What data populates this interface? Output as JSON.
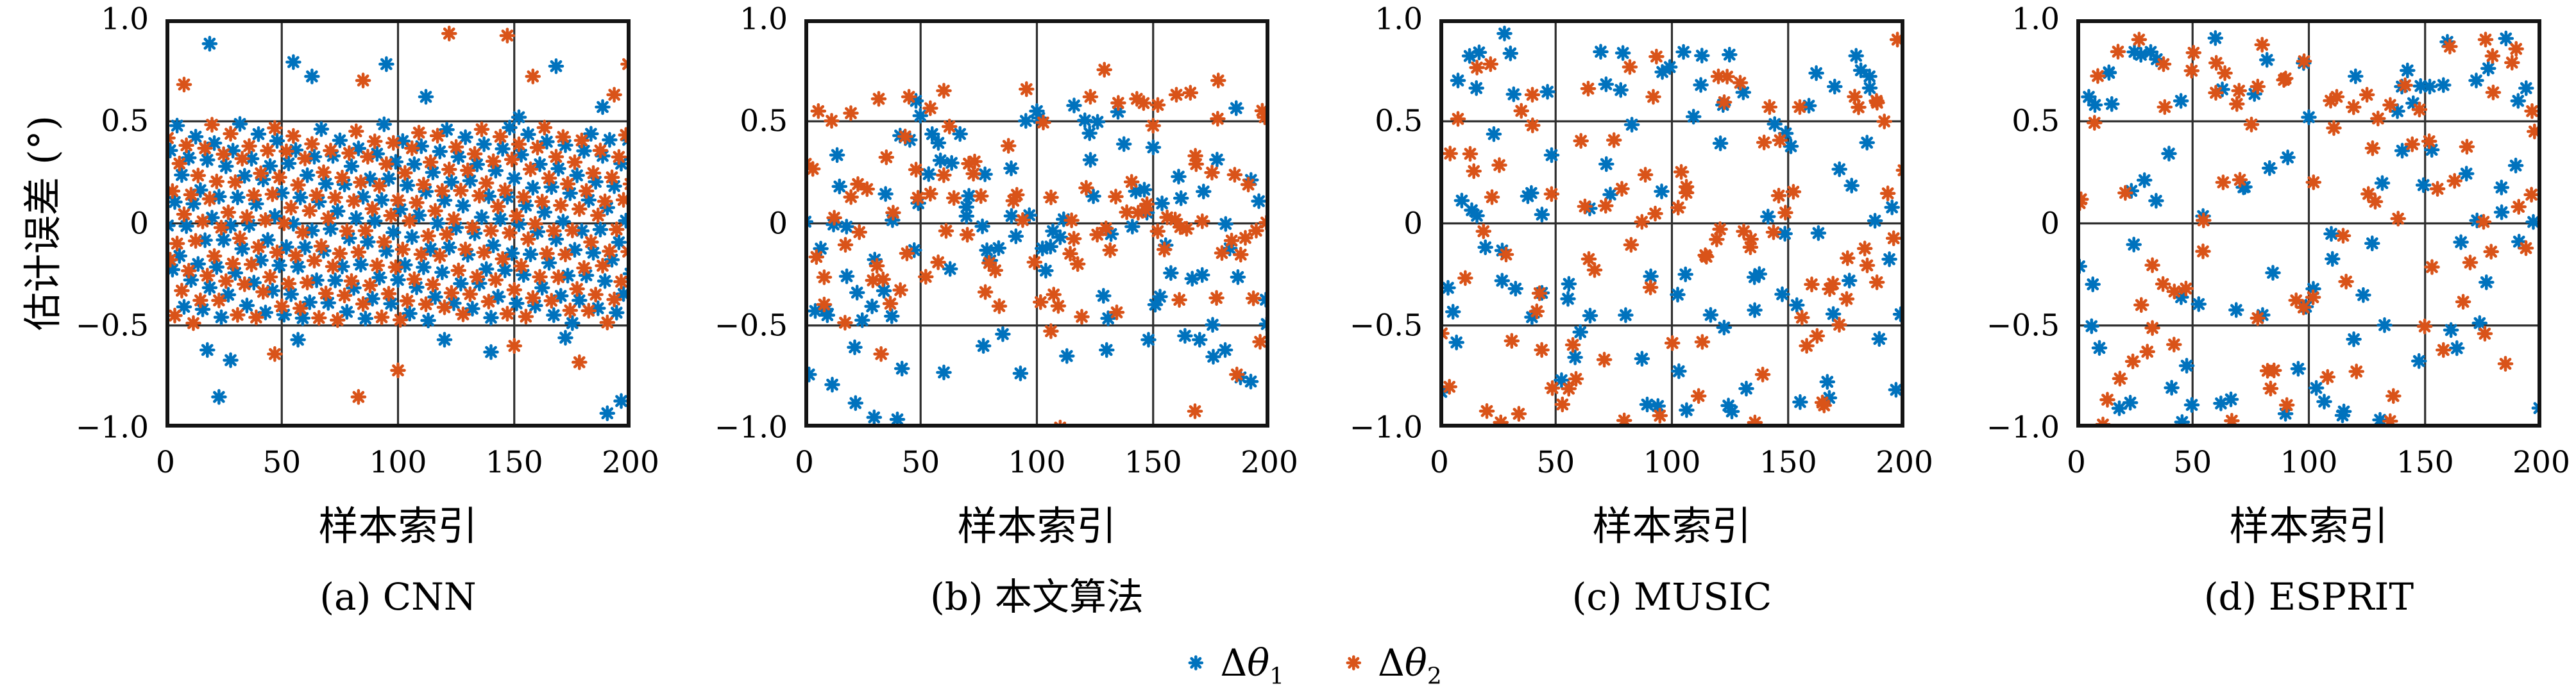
{
  "figure": {
    "background": "#ffffff",
    "axis_color": "#141414",
    "grid_color": "#2e2e2e",
    "ylabel": "估计误差 (°)",
    "legend": [
      {
        "marker": "asterisk-8-spoke",
        "delta": "Δ",
        "theta": "θ",
        "sub": "1",
        "color": "#0072bd"
      },
      {
        "marker": "asterisk-8-spoke",
        "delta": "Δ",
        "theta": "θ",
        "sub": "2",
        "color": "#d95319"
      }
    ]
  },
  "chart_data": [
    {
      "type": "scatter",
      "caption": "(a) CNN",
      "xlabel": "样本索引",
      "ylabel": "估计误差 (°)",
      "xlim": [
        0,
        200
      ],
      "ylim": [
        -1.0,
        1.0
      ],
      "xticks": [
        0,
        50,
        100,
        150,
        200
      ],
      "xtick_labels": [
        "0",
        "50",
        "100",
        "150",
        "200"
      ],
      "yticks": [
        1.0,
        0.5,
        0.0,
        -0.5,
        -1.0
      ],
      "ytick_labels": [
        "1.0",
        "0.5",
        "0",
        "−0.5",
        "−1.0"
      ],
      "grid": true,
      "marker": "asterisk-8-spoke",
      "series": [
        {
          "name": "Δθ1",
          "color": "#0072bd",
          "gen": {
            "kind": "lattice",
            "n": 200,
            "seed": 101,
            "step": 0.3707,
            "phase": 0.13,
            "spread": 0.97,
            "jitter": 0.05
          },
          "outliers": [
            [
              19,
              0.88
            ],
            [
              55,
              0.79
            ],
            [
              63,
              0.72
            ],
            [
              95,
              0.78
            ],
            [
              112,
              0.62
            ],
            [
              152,
              0.52
            ],
            [
              168,
              0.77
            ],
            [
              188,
              0.57
            ],
            [
              18,
              -0.62
            ],
            [
              23,
              -0.85
            ],
            [
              28,
              -0.67
            ],
            [
              57,
              -0.57
            ],
            [
              120,
              -0.57
            ],
            [
              140,
              -0.63
            ],
            [
              172,
              -0.56
            ],
            [
              190,
              -0.93
            ],
            [
              196,
              -0.87
            ]
          ]
        },
        {
          "name": "Δθ2",
          "color": "#d95319",
          "gen": {
            "kind": "lattice",
            "n": 200,
            "seed": 202,
            "step": 0.3707,
            "phase": 0.57,
            "spread": 0.97,
            "jitter": 0.05
          },
          "outliers": [
            [
              8,
              0.68
            ],
            [
              85,
              0.7
            ],
            [
              122,
              0.93
            ],
            [
              147,
              0.92
            ],
            [
              158,
              0.72
            ],
            [
              193,
              0.63
            ],
            [
              199,
              0.78
            ],
            [
              47,
              -0.64
            ],
            [
              83,
              -0.85
            ],
            [
              100,
              -0.72
            ],
            [
              150,
              -0.6
            ],
            [
              178,
              -0.68
            ]
          ]
        }
      ]
    },
    {
      "type": "scatter",
      "caption": "(b) 本文算法",
      "xlabel": "样本索引",
      "ylabel": "",
      "xlim": [
        0,
        200
      ],
      "ylim": [
        -1.0,
        1.0
      ],
      "xticks": [
        0,
        50,
        100,
        150,
        200
      ],
      "xtick_labels": [
        "0",
        "50",
        "100",
        "150",
        "200"
      ],
      "yticks": [
        1.0,
        0.5,
        0.0,
        -0.5,
        -1.0
      ],
      "ytick_labels": [
        "1.0",
        "0.5",
        "0",
        "−0.5",
        "−1.0"
      ],
      "grid": true,
      "marker": "asterisk-8-spoke",
      "series": [
        {
          "name": "Δθ1",
          "color": "#0072bd",
          "gen": {
            "kind": "triangular",
            "n": 95,
            "seed": 303,
            "scale": 0.8,
            "offset": -0.03,
            "clip": [
              -0.97,
              0.93
            ]
          },
          "outliers": [
            [
              2,
              -0.74
            ],
            [
              12,
              -0.79
            ],
            [
              22,
              -0.88
            ],
            [
              30,
              -0.95
            ],
            [
              40,
              -0.96
            ],
            [
              48,
              0.6
            ],
            [
              60,
              -0.73
            ],
            [
              77,
              -0.6
            ],
            [
              100,
              0.55
            ],
            [
              130,
              -0.62
            ],
            [
              148,
              -0.57
            ],
            [
              170,
              -0.57
            ],
            [
              181,
              -0.62
            ]
          ]
        },
        {
          "name": "Δθ2",
          "color": "#d95319",
          "gen": {
            "kind": "triangular",
            "n": 95,
            "seed": 404,
            "scale": 0.8,
            "offset": 0.0,
            "clip": [
              -0.97,
              0.93
            ]
          },
          "outliers": [
            [
              6,
              0.55
            ],
            [
              20,
              0.54
            ],
            [
              32,
              0.61
            ],
            [
              45,
              0.62
            ],
            [
              33,
              -0.64
            ],
            [
              60,
              0.65
            ],
            [
              123,
              0.62
            ],
            [
              135,
              0.59
            ],
            [
              143,
              0.61
            ],
            [
              152,
              0.58
            ],
            [
              160,
              0.63
            ],
            [
              166,
              0.64
            ],
            [
              178,
              0.7
            ],
            [
              110,
              -1.0
            ],
            [
              168,
              -0.92
            ],
            [
              186,
              -0.74
            ],
            [
              196,
              -0.58
            ],
            [
              198,
              0.52
            ]
          ]
        }
      ]
    },
    {
      "type": "scatter",
      "caption": "(c) MUSIC",
      "xlabel": "样本索引",
      "ylabel": "",
      "xlim": [
        0,
        200
      ],
      "ylim": [
        -1.0,
        1.0
      ],
      "xticks": [
        0,
        50,
        100,
        150,
        200
      ],
      "xtick_labels": [
        "0",
        "50",
        "100",
        "150",
        "200"
      ],
      "yticks": [
        1.0,
        0.5,
        0.0,
        -0.5,
        -1.0
      ],
      "ytick_labels": [
        "1.0",
        "0.5",
        "0",
        "−0.5",
        "−1.0"
      ],
      "grid": true,
      "marker": "asterisk-8-spoke",
      "series": [
        {
          "name": "Δθ1",
          "color": "#0072bd",
          "gen": {
            "kind": "uniform",
            "n": 90,
            "seed": 505,
            "scale": 0.92,
            "offset": -0.06,
            "clip": [
              -0.985,
              0.95
            ]
          },
          "outliers": [
            [
              13,
              0.82
            ],
            [
              28,
              0.93
            ],
            [
              8,
              0.7
            ],
            [
              105,
              0.84
            ],
            [
              122,
              0.58
            ],
            [
              170,
              0.67
            ],
            [
              185,
              0.72
            ]
          ]
        },
        {
          "name": "Δθ2",
          "color": "#d95319",
          "gen": {
            "kind": "uniform",
            "n": 90,
            "seed": 606,
            "scale": 0.9,
            "offset": -0.08,
            "clip": [
              -0.985,
              0.95
            ]
          },
          "outliers": [
            [
              22,
              0.78
            ],
            [
              40,
              0.63
            ],
            [
              64,
              0.66
            ],
            [
              92,
              0.62
            ],
            [
              120,
              0.72
            ],
            [
              142,
              0.57
            ],
            [
              155,
              0.57
            ],
            [
              188,
              0.6
            ],
            [
              197,
              0.9
            ]
          ]
        }
      ]
    },
    {
      "type": "scatter",
      "caption": "(d) ESPRIT",
      "xlabel": "样本索引",
      "ylabel": "",
      "xlim": [
        0,
        200
      ],
      "ylim": [
        -1.0,
        1.0
      ],
      "xticks": [
        0,
        50,
        100,
        150,
        200
      ],
      "xtick_labels": [
        "0",
        "50",
        "100",
        "150",
        "200"
      ],
      "yticks": [
        1.0,
        0.5,
        0.0,
        -0.5,
        -1.0
      ],
      "ytick_labels": [
        "1.0",
        "0.5",
        "0",
        "−0.5",
        "−1.0"
      ],
      "grid": true,
      "marker": "asterisk-8-spoke",
      "series": [
        {
          "name": "Δθ1",
          "color": "#0072bd",
          "gen": {
            "kind": "uniform",
            "n": 80,
            "seed": 707,
            "scale": 0.96,
            "offset": -0.03,
            "clip": [
              -0.985,
              0.95
            ]
          },
          "outliers": [
            [
              8,
              0.58
            ],
            [
              14,
              0.74
            ],
            [
              25,
              0.84
            ],
            [
              32,
              0.84
            ],
            [
              45,
              0.6
            ],
            [
              100,
              0.52
            ],
            [
              140,
              0.67
            ],
            [
              152,
              0.67
            ],
            [
              172,
              0.7
            ],
            [
              190,
              0.6
            ]
          ]
        },
        {
          "name": "Δθ2",
          "color": "#d95319",
          "gen": {
            "kind": "uniform",
            "n": 80,
            "seed": 808,
            "scale": 0.96,
            "offset": -0.03,
            "clip": [
              -0.985,
              0.95
            ]
          },
          "outliers": [
            [
              27,
              0.9
            ],
            [
              38,
              0.57
            ],
            [
              60,
              0.64
            ],
            [
              70,
              0.65
            ],
            [
              78,
              0.67
            ],
            [
              90,
              0.71
            ],
            [
              112,
              0.62
            ],
            [
              125,
              0.63
            ],
            [
              135,
              0.58
            ],
            [
              176,
              0.9
            ],
            [
              179,
              0.82
            ],
            [
              196,
              0.55
            ]
          ]
        }
      ]
    }
  ]
}
